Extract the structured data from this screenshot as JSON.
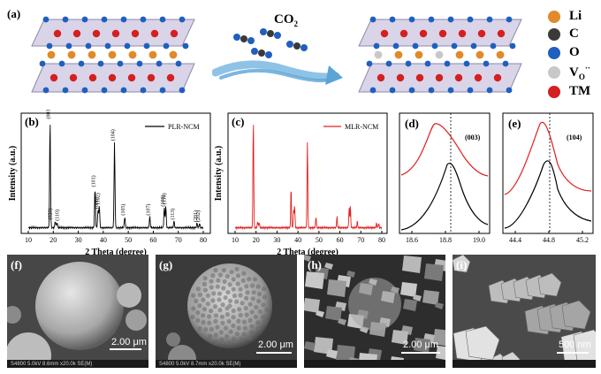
{
  "labels": {
    "a": "(a)",
    "b": "(b)",
    "c": "(c)",
    "d": "(d)",
    "e": "(e)",
    "f": "(f)",
    "g": "(g)",
    "h": "(h)",
    "i": "(i)"
  },
  "schematic": {
    "gas_label": "CO",
    "gas_subscript": "2",
    "legend": [
      {
        "name": "Li",
        "color": "#e08a2a"
      },
      {
        "name": "C",
        "color": "#3a3a3a"
      },
      {
        "name": "O",
        "color": "#1f5fbf"
      },
      {
        "name": "V",
        "sub": "O",
        "sup": "··",
        "color": "#c8c8c8"
      },
      {
        "name": "TM",
        "color": "#d42020"
      }
    ]
  },
  "xrd_b": {
    "legend": "PLR-NCM",
    "ylabel": "Intensity (a.u.)",
    "xlabel": "2 Theta (degree)",
    "xticks": [
      "10",
      "20",
      "30",
      "40",
      "50",
      "60",
      "70",
      "80"
    ],
    "peak_labels": [
      "(003)",
      "(020)",
      "(110)",
      "(101)",
      "(006)",
      "(102)",
      "(104)",
      "(105)",
      "(107)",
      "(108)",
      "(110)",
      "(113)",
      "(201)",
      "(202)"
    ]
  },
  "xrd_c": {
    "legend": "MLR-NCM",
    "ylabel": "Intensity (a.u.)",
    "xlabel": "2 Theta (degree)",
    "xticks": [
      "10",
      "20",
      "30",
      "40",
      "50",
      "60",
      "70",
      "80"
    ]
  },
  "zoom_d": {
    "label": "(003)",
    "xticks": [
      "18.6",
      "18.8",
      "19.0"
    ]
  },
  "zoom_e": {
    "label": "(104)",
    "xticks": [
      "44.4",
      "44.8",
      "45.2"
    ]
  },
  "sem": {
    "f": {
      "scale": "2.00 μm",
      "info": "S4800 5.0kV 8.6mm x20.0k SE(M)"
    },
    "g": {
      "scale": "2.00 μm",
      "info": "S4800 5.0kV 8.7mm x20.0k SE(M)"
    },
    "h": {
      "scale": "2.00 μm",
      "info": ""
    },
    "i": {
      "scale": "500 nm",
      "info": ""
    }
  },
  "colors": {
    "black": "#000000",
    "red": "#e02020",
    "li": "#e08a2a",
    "o": "#1f5fbf",
    "tm": "#d42020",
    "c": "#3a3a3a",
    "vac": "#c8c8c8"
  }
}
